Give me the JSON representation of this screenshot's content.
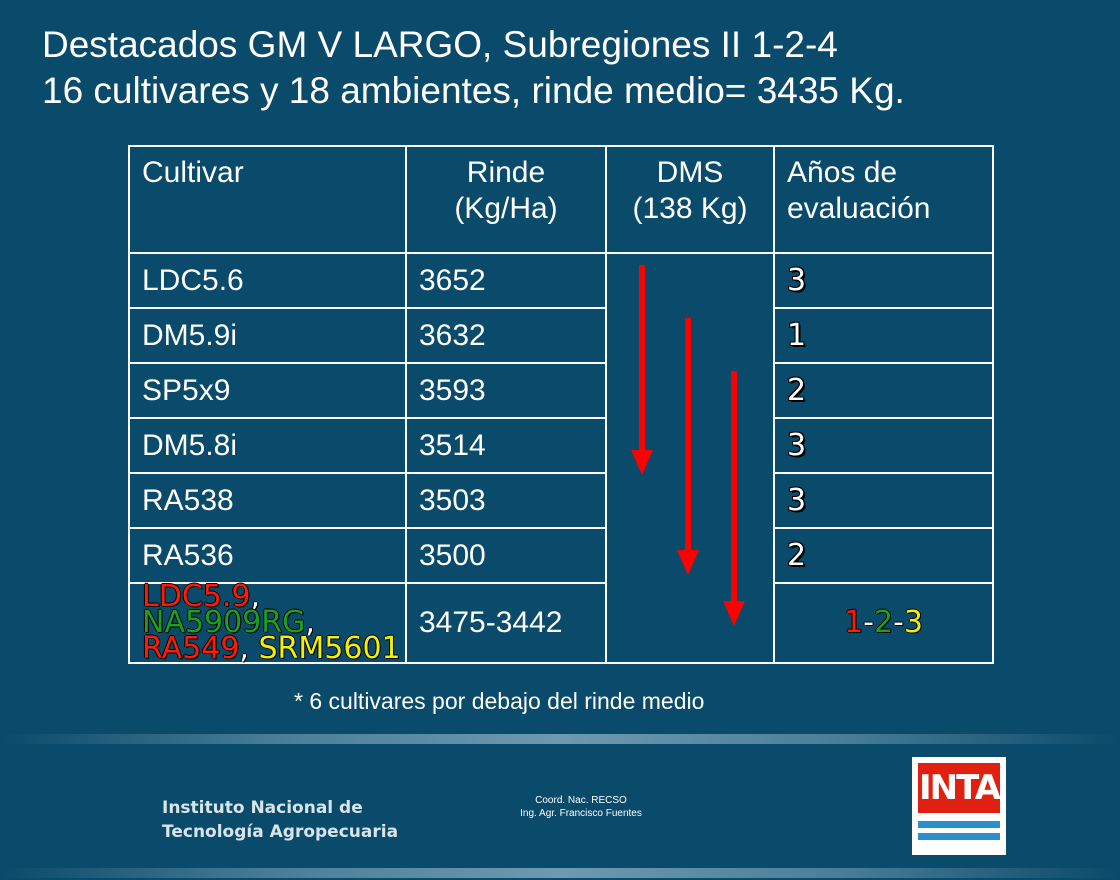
{
  "title": {
    "line1": "Destacados GM V LARGO, Subregiones II 1-2-4",
    "line2": "16 cultivares y 18 ambientes, rinde medio= 3435 Kg."
  },
  "table": {
    "headers": {
      "cultivar": "Cultivar",
      "rinde_line1": "Rinde",
      "rinde_line2": "(Kg/Ha)",
      "dms_line1": "DMS",
      "dms_line2": "(138 Kg)",
      "anos_line1": "Años de",
      "anos_line2": "evaluación"
    },
    "rows": [
      {
        "cultivar": "LDC5.6",
        "rinde": "3652",
        "anos": "3",
        "anos_color": "#1e9e1e"
      },
      {
        "cultivar": "DM5.9i",
        "rinde": "3632",
        "anos": "1",
        "anos_color": "#ff1a00"
      },
      {
        "cultivar": "SP5x9",
        "rinde": "3593",
        "anos": "2",
        "anos_color": "#f5f000"
      },
      {
        "cultivar": "DM5.8i",
        "rinde": "3514",
        "anos": "3",
        "anos_color": "#1e9e1e"
      },
      {
        "cultivar": "RA538",
        "rinde": "3503",
        "anos": "3",
        "anos_color": "#1e9e1e"
      },
      {
        "cultivar": "RA536",
        "rinde": "3500",
        "anos": "2",
        "anos_color": "#f5f000"
      }
    ],
    "last_row": {
      "cultivars": [
        {
          "name": "LDC5.9",
          "color": "#ff1a00"
        },
        {
          "name": "NA5909RG",
          "color": "#1e9e1e"
        },
        {
          "name": "RA549",
          "color": "#ff1a00"
        },
        {
          "name": "SRM5601",
          "color": "#f5f000"
        }
      ],
      "sep": ",",
      "rinde": "3475-3442",
      "anos": [
        "1",
        "2",
        "3"
      ],
      "anos_sep": "-"
    },
    "dms_arrow_color": "#ff0000"
  },
  "footnote": "* 6 cultivares por debajo del rinde medio",
  "footer": {
    "institute_line1": "Instituto Nacional de",
    "institute_line2": "Tecnología Agropecuaria",
    "coord_line1": "Coord. Nac. RECSO",
    "coord_line2": "Ing. Agr. Francisco Fuentes",
    "logo_text": "INTA"
  }
}
